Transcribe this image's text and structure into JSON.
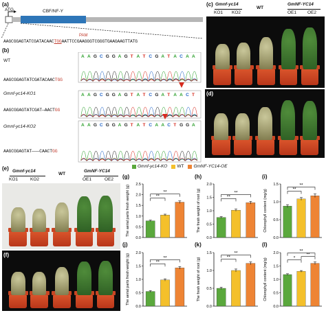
{
  "panel_labels": {
    "a": "(a)",
    "b": "(b)",
    "c": "(c)",
    "d": "(d)",
    "e": "(e)",
    "f": "(f)",
    "g": "(g)",
    "h": "(h)",
    "i": "(i)",
    "j": "(j)",
    "k": "(k)",
    "l": "(l)"
  },
  "gene_map": {
    "atg": "ATG",
    "domain": "CBF/NF-Y",
    "pam": "PAM",
    "full_seq_prefix": "AAGCGGAGTATCGATACAAC",
    "full_seq_pam": "TGG",
    "full_seq_suffix": "AATTCCGAAGGGTCGGGTGAAGAAGTTATG"
  },
  "sequences": {
    "wt_label": "WT",
    "wt_seq": "AAGCGGAGTATCGATACAAC",
    "wt_pam": "TGG",
    "ko1_label": "Gmnf-yc14-KO1",
    "ko1_seq": "AAGCGGAGTATCGAT—AACT",
    "ko1_pam": "GG",
    "ko2_label": "Gmnf-yc14-KO2",
    "ko2_seq": "AAGCGGAGTAT———CAACT",
    "ko2_pam": "GG",
    "trace_wt": "AAGCGGAGTATCGATACAA",
    "trace_ko1": "AAGCGGAGTATCGATAACT",
    "trace_ko2": "AAGCGGAGTATCAACTGGA"
  },
  "photo_c": {
    "group_left": "Gmnf-yc14",
    "group_mid": "WT",
    "group_right": "GmNF-YC14",
    "lines": [
      "KO1",
      "KO2",
      "",
      "OE1",
      "OE2"
    ]
  },
  "photo_e": {
    "group_left": "Gmnf-yc14",
    "group_mid": "WT",
    "group_right": "GmNF-YC14",
    "lines": [
      "KO1",
      "KO2",
      "",
      "OE1",
      "OE2"
    ]
  },
  "legend": {
    "items": [
      "Gmnf-yc14-KO",
      "WT",
      "GmNF-YC14-OE"
    ],
    "colors": [
      "#5aa83c",
      "#f4c02b",
      "#ee8434"
    ]
  },
  "chart_data": [
    {
      "panel": "g",
      "type": "bar",
      "ylabel": "The aerial parts fresh weight (g)",
      "ylim": [
        0,
        2.5
      ],
      "ticks": [
        "0.0",
        "0.5",
        "1.0",
        "1.5",
        "2.0",
        "2.5"
      ],
      "values": [
        0.78,
        1.05,
        1.65
      ],
      "errors": [
        0.03,
        0.04,
        0.06
      ],
      "sig": "**"
    },
    {
      "panel": "h",
      "type": "bar",
      "ylabel": "The fresh weight of root (g)",
      "ylim": [
        0,
        2.0
      ],
      "ticks": [
        "0.0",
        "0.5",
        "1.0",
        "1.5",
        "2.0"
      ],
      "values": [
        0.75,
        1.02,
        1.3
      ],
      "errors": [
        0.03,
        0.04,
        0.05
      ],
      "sig": "**"
    },
    {
      "panel": "i",
      "type": "bar",
      "ylabel": "Chlorophyll content (mg/g)",
      "ylim": [
        0,
        1.5
      ],
      "ticks": [
        "0.0",
        "0.5",
        "1.0",
        "1.5"
      ],
      "values": [
        0.88,
        1.08,
        1.17
      ],
      "errors": [
        0.04,
        0.04,
        0.05
      ],
      "sig": "**"
    },
    {
      "panel": "j",
      "type": "bar",
      "ylabel": "The aerial parts fresh weight (g)",
      "ylim": [
        0,
        2.0
      ],
      "ticks": [
        "0.0",
        "0.5",
        "1.0",
        "1.5",
        "2.0"
      ],
      "values": [
        0.55,
        0.98,
        1.43
      ],
      "errors": [
        0.03,
        0.04,
        0.05
      ],
      "sig": "**"
    },
    {
      "panel": "k",
      "type": "bar",
      "ylabel": "The fresh weight of root (g)",
      "ylim": [
        0,
        1.5
      ],
      "ticks": [
        "0.0",
        "0.5",
        "1.0",
        "1.5"
      ],
      "values": [
        0.5,
        1.0,
        1.2
      ],
      "errors": [
        0.03,
        0.04,
        0.04
      ],
      "sig": "**"
    },
    {
      "panel": "l",
      "type": "bar",
      "ylabel": "Chlorophyll content (mg/g)",
      "ylim": [
        0,
        2.0
      ],
      "ticks": [
        "0.0",
        "0.5",
        "1.0",
        "1.5",
        "2.0"
      ],
      "values": [
        1.18,
        1.3,
        1.6
      ],
      "errors": [
        0.03,
        0.03,
        0.05
      ],
      "sig": [
        "*",
        "**",
        "**"
      ]
    }
  ]
}
